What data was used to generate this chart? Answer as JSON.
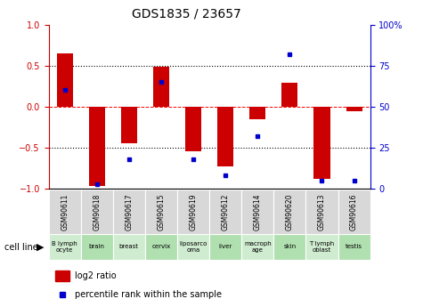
{
  "title": "GDS1835 / 23657",
  "samples": [
    "GSM90611",
    "GSM90618",
    "GSM90617",
    "GSM90615",
    "GSM90619",
    "GSM90612",
    "GSM90614",
    "GSM90620",
    "GSM90613",
    "GSM90616"
  ],
  "cell_lines": [
    "B lymph\nocyte",
    "brain",
    "breast",
    "cervix",
    "liposarco\noma",
    "liver",
    "macroph\nage",
    "skin",
    "T lymph\noblast",
    "testis"
  ],
  "log2_ratio": [
    0.65,
    -0.97,
    -0.45,
    0.49,
    -0.54,
    -0.73,
    -0.15,
    0.29,
    -0.88,
    -0.05
  ],
  "percentile_rank": [
    60,
    3,
    18,
    65,
    18,
    8,
    32,
    82,
    5,
    5
  ],
  "bar_color": "#cc0000",
  "dot_color": "#0000cc",
  "cell_line_colors": [
    "#d0ecd0",
    "#b0e0b0",
    "#d0ecd0",
    "#b0e0b0",
    "#d0ecd0",
    "#b0e0b0",
    "#d0ecd0",
    "#b0e0b0",
    "#d0ecd0",
    "#b0e0b0"
  ],
  "gsm_bg": "#d8d8d8",
  "left_axis_color": "#cc0000",
  "right_axis_color": "#0000cc",
  "ylim": [
    -1,
    1
  ],
  "right_ylim": [
    0,
    100
  ],
  "yticks_left": [
    -1,
    -0.5,
    0,
    0.5,
    1
  ],
  "yticks_right": [
    0,
    25,
    50,
    75,
    100
  ],
  "ytick_right_labels": [
    "0",
    "25",
    "50",
    "75",
    "100%"
  ]
}
